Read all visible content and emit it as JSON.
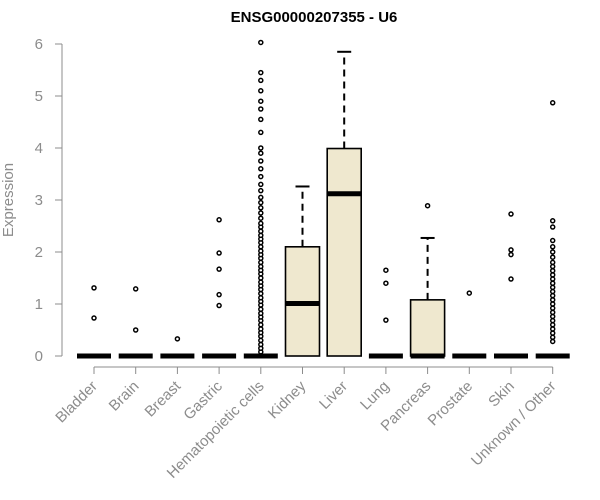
{
  "chart_data": {
    "type": "boxplot",
    "title": "ENSG00000207355 - U6",
    "ylabel": "Expression",
    "xlabel": "",
    "ylim": [
      0,
      6
    ],
    "yticks": [
      0,
      1,
      2,
      3,
      4,
      5,
      6
    ],
    "grid": false,
    "colors": {
      "box_fill": "#efe8cf",
      "stroke": "#000000",
      "axis": "#8c8c8c"
    },
    "categories": [
      "Bladder",
      "Brain",
      "Breast",
      "Gastric",
      "Hematopoietic cells",
      "Kidney",
      "Liver",
      "Lung",
      "Pancreas",
      "Prostate",
      "Skin",
      "Unknown / Other"
    ],
    "boxes": [
      {
        "category": "Bladder",
        "min": 0,
        "q1": 0,
        "median": 0,
        "q3": 0,
        "max": 0,
        "outliers": [
          0.73,
          1.31
        ]
      },
      {
        "category": "Brain",
        "min": 0,
        "q1": 0,
        "median": 0,
        "q3": 0,
        "max": 0,
        "outliers": [
          0.5,
          1.29
        ]
      },
      {
        "category": "Breast",
        "min": 0,
        "q1": 0,
        "median": 0,
        "q3": 0,
        "max": 0,
        "outliers": [
          0.33
        ]
      },
      {
        "category": "Gastric",
        "min": 0,
        "q1": 0,
        "median": 0,
        "q3": 0,
        "max": 0,
        "outliers": [
          0.97,
          1.18,
          1.67,
          1.98,
          2.62
        ]
      },
      {
        "category": "Hematopoietic cells",
        "min": 0,
        "q1": 0,
        "median": 0,
        "q3": 0,
        "max": 0,
        "outliers": [
          0.08,
          0.15,
          0.22,
          0.3,
          0.38,
          0.45,
          0.52,
          0.6,
          0.68,
          0.75,
          0.82,
          0.9,
          0.98,
          1.05,
          1.12,
          1.2,
          1.28,
          1.35,
          1.42,
          1.5,
          1.58,
          1.65,
          1.72,
          1.8,
          1.88,
          1.95,
          2.02,
          2.1,
          2.18,
          2.25,
          2.32,
          2.4,
          2.48,
          2.55,
          2.65,
          2.75,
          2.85,
          2.95,
          3.05,
          3.18,
          3.3,
          3.45,
          3.6,
          3.75,
          3.9,
          4.0,
          4.3,
          4.55,
          4.75,
          4.9,
          5.1,
          5.3,
          5.45,
          6.03
        ]
      },
      {
        "category": "Kidney",
        "min": 0,
        "q1": 0,
        "median": 1.01,
        "q3": 2.1,
        "max": 3.26,
        "outliers": []
      },
      {
        "category": "Liver",
        "min": 0,
        "q1": 0,
        "median": 3.12,
        "q3": 3.99,
        "max": 5.85,
        "outliers": []
      },
      {
        "category": "Lung",
        "min": 0,
        "q1": 0,
        "median": 0,
        "q3": 0,
        "max": 0,
        "outliers": [
          0.69,
          1.4,
          1.65
        ]
      },
      {
        "category": "Pancreas",
        "min": 0,
        "q1": 0,
        "median": 0,
        "q3": 1.08,
        "max": 2.27,
        "outliers": [
          2.89
        ]
      },
      {
        "category": "Prostate",
        "min": 0,
        "q1": 0,
        "median": 0,
        "q3": 0,
        "max": 0,
        "outliers": [
          1.21
        ]
      },
      {
        "category": "Skin",
        "min": 0,
        "q1": 0,
        "median": 0,
        "q3": 0,
        "max": 0,
        "outliers": [
          1.48,
          1.95,
          2.04,
          2.73
        ]
      },
      {
        "category": "Unknown / Other",
        "min": 0,
        "q1": 0,
        "median": 0,
        "q3": 0,
        "max": 0,
        "outliers": [
          0.28,
          0.36,
          0.44,
          0.52,
          0.6,
          0.68,
          0.76,
          0.84,
          0.92,
          1.0,
          1.08,
          1.16,
          1.24,
          1.32,
          1.4,
          1.48,
          1.56,
          1.64,
          1.72,
          1.8,
          1.9,
          2.0,
          2.1,
          2.22,
          2.48,
          2.6,
          4.87
        ]
      }
    ]
  }
}
